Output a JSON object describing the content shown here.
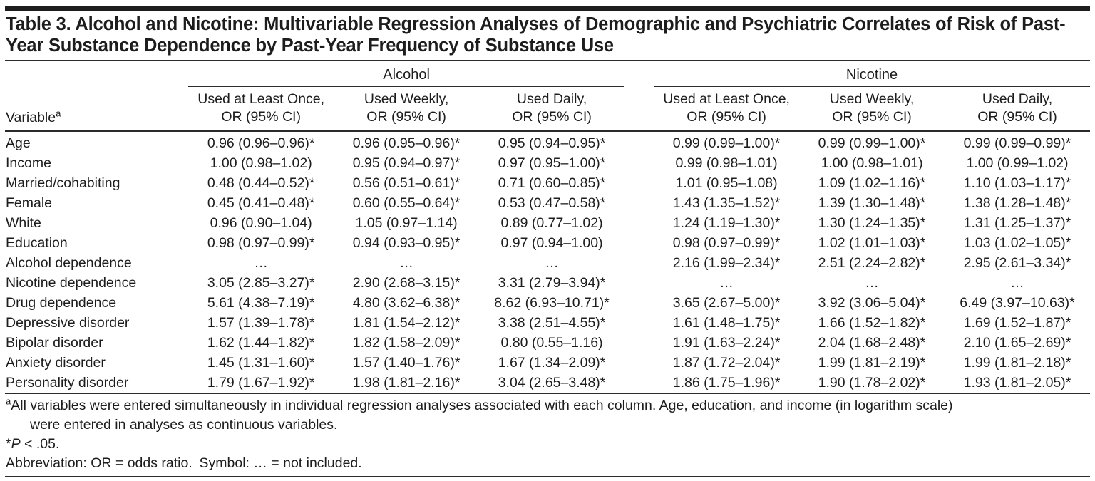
{
  "table": {
    "title": "Table 3. Alcohol and Nicotine: Multivariable Regression Analyses of Demographic and Psychiatric Correlates of Risk of Past-Year Substance Dependence by Past-Year Frequency of Substance Use",
    "variable_header": "Variable",
    "variable_sup": "a",
    "group_headers": [
      "Alcohol",
      "Nicotine"
    ],
    "col_headers": [
      "Used at Least Once,\nOR (95% CI)",
      "Used Weekly,\nOR (95% CI)",
      "Used Daily,\nOR (95% CI)",
      "Used at Least Once,\nOR (95% CI)",
      "Used Weekly,\nOR (95% CI)",
      "Used Daily,\nOR (95% CI)"
    ],
    "rows": [
      {
        "label": "Age",
        "values": [
          "0.96 (0.96–0.96)*",
          "0.96 (0.95–0.96)*",
          "0.95 (0.94–0.95)*",
          "0.99 (0.99–1.00)*",
          "0.99 (0.99–1.00)*",
          "0.99 (0.99–0.99)*"
        ]
      },
      {
        "label": "Income",
        "values": [
          "1.00 (0.98–1.02)",
          "0.95 (0.94–0.97)*",
          "0.97 (0.95–1.00)*",
          "0.99 (0.98–1.01)",
          "1.00 (0.98–1.01)",
          "1.00 (0.99–1.02)"
        ]
      },
      {
        "label": "Married/cohabiting",
        "values": [
          "0.48 (0.44–0.52)*",
          "0.56 (0.51–0.61)*",
          "0.71 (0.60–0.85)*",
          "1.01 (0.95–1.08)",
          "1.09 (1.02–1.16)*",
          "1.10 (1.03–1.17)*"
        ]
      },
      {
        "label": "Female",
        "values": [
          "0.45 (0.41–0.48)*",
          "0.60 (0.55–0.64)*",
          "0.53 (0.47–0.58)*",
          "1.43 (1.35–1.52)*",
          "1.39 (1.30–1.48)*",
          "1.38 (1.28–1.48)*"
        ]
      },
      {
        "label": "White",
        "values": [
          "0.96 (0.90–1.04)",
          "1.05 (0.97–1.14)",
          "0.89 (0.77–1.02)",
          "1.24 (1.19–1.30)*",
          "1.30 (1.24–1.35)*",
          "1.31 (1.25–1.37)*"
        ]
      },
      {
        "label": "Education",
        "values": [
          "0.98 (0.97–0.99)*",
          "0.94 (0.93–0.95)*",
          "0.97 (0.94–1.00)",
          "0.98 (0.97–0.99)*",
          "1.02 (1.01–1.03)*",
          "1.03 (1.02–1.05)*"
        ]
      },
      {
        "label": "Alcohol dependence",
        "values": [
          "…",
          "…",
          "…",
          "2.16 (1.99–2.34)*",
          "2.51 (2.24–2.82)*",
          "2.95 (2.61–3.34)*"
        ]
      },
      {
        "label": "Nicotine dependence",
        "values": [
          "3.05 (2.85–3.27)*",
          "2.90 (2.68–3.15)*",
          "3.31 (2.79–3.94)*",
          "…",
          "…",
          "…"
        ]
      },
      {
        "label": "Drug dependence",
        "values": [
          "5.61 (4.38–7.19)*",
          "4.80 (3.62–6.38)*",
          "8.62 (6.93–10.71)*",
          "3.65 (2.67–5.00)*",
          "3.92 (3.06–5.04)*",
          "6.49 (3.97–10.63)*"
        ]
      },
      {
        "label": "Depressive disorder",
        "values": [
          "1.57 (1.39–1.78)*",
          "1.81 (1.54–2.12)*",
          "3.38 (2.51–4.55)*",
          "1.61 (1.48–1.75)*",
          "1.66 (1.52–1.82)*",
          "1.69 (1.52–1.87)*"
        ]
      },
      {
        "label": "Bipolar disorder",
        "values": [
          "1.62 (1.44–1.82)*",
          "1.82 (1.58–2.09)*",
          "0.80 (0.55–1.16)",
          "1.91 (1.63–2.24)*",
          "2.04 (1.68–2.48)*",
          "2.10 (1.65–2.69)*"
        ]
      },
      {
        "label": "Anxiety disorder",
        "values": [
          "1.45 (1.31–1.60)*",
          "1.57 (1.40–1.76)*",
          "1.67 (1.34–2.09)*",
          "1.87 (1.72–2.04)*",
          "1.99 (1.81–2.19)*",
          "1.99 (1.81–2.18)*"
        ]
      },
      {
        "label": "Personality disorder",
        "values": [
          "1.79 (1.67–1.92)*",
          "1.98 (1.81–2.16)*",
          "3.04 (2.65–3.48)*",
          "1.86 (1.75–1.96)*",
          "1.90 (1.78–2.02)*",
          "1.93 (1.81–2.05)*"
        ]
      }
    ],
    "footnotes": {
      "a_marker": "a",
      "a_text": "All variables were entered simultaneously in individual regression analyses associated with each column. Age, education, and income (in logarithm scale)\nwere entered in analyses as continuous variables.",
      "sig_star": "*",
      "sig_p": "P",
      "sig_rest": " < .05.",
      "abbreviation": "Abbreviation: OR = odds ratio. Symbol: … = not included."
    }
  },
  "colors": {
    "text": "#1d1d1d",
    "rule": "#2b2b2b",
    "background": "#ffffff"
  }
}
